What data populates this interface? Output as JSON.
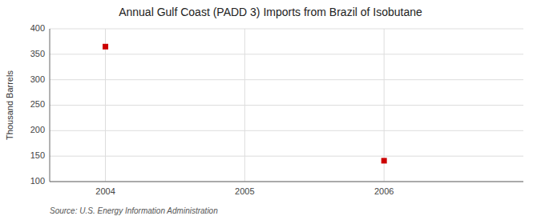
{
  "chart_data": {
    "type": "scatter",
    "title": "Annual Gulf Coast (PADD 3) Imports from Brazil of Isobutane",
    "y_label": "Thousand Barrels",
    "annotations": [
      "Source: U.S. Energy Information Administration"
    ],
    "x": [
      2004,
      2006
    ],
    "values": [
      365,
      141
    ],
    "color": "#CC0000",
    "marker": "square",
    "xlim": [
      2003.6,
      2007.0
    ],
    "ylim": [
      100,
      400
    ],
    "xticks": [
      2004,
      2005,
      2006
    ],
    "yticks": [
      100,
      150,
      200,
      250,
      300,
      350,
      400
    ],
    "grid": true
  }
}
